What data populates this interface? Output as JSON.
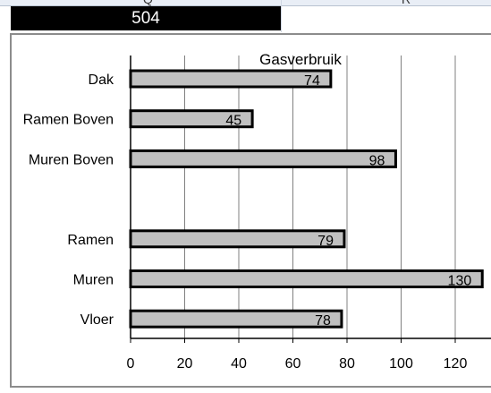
{
  "sheet": {
    "column_letters": [
      "Q",
      "R"
    ],
    "cell_value": "504"
  },
  "chart_data": {
    "type": "bar",
    "orientation": "horizontal",
    "title": "Gasverbruik",
    "categories": [
      "Dak",
      "Ramen Boven",
      "Muren Boven",
      "",
      "Ramen",
      "Muren",
      "Vloer"
    ],
    "values": [
      74,
      45,
      98,
      null,
      79,
      130,
      78
    ],
    "data_labels": [
      "74",
      "45",
      "98",
      "",
      "79",
      "130",
      "78"
    ],
    "xlabel": "",
    "ylabel": "",
    "xlim": [
      0,
      130
    ],
    "x_ticks": [
      0,
      20,
      40,
      60,
      80,
      100,
      120
    ],
    "grid": true,
    "bar_color": "#c0c0c0",
    "bar_border_color": "#000000",
    "grid_color": "#808080"
  }
}
